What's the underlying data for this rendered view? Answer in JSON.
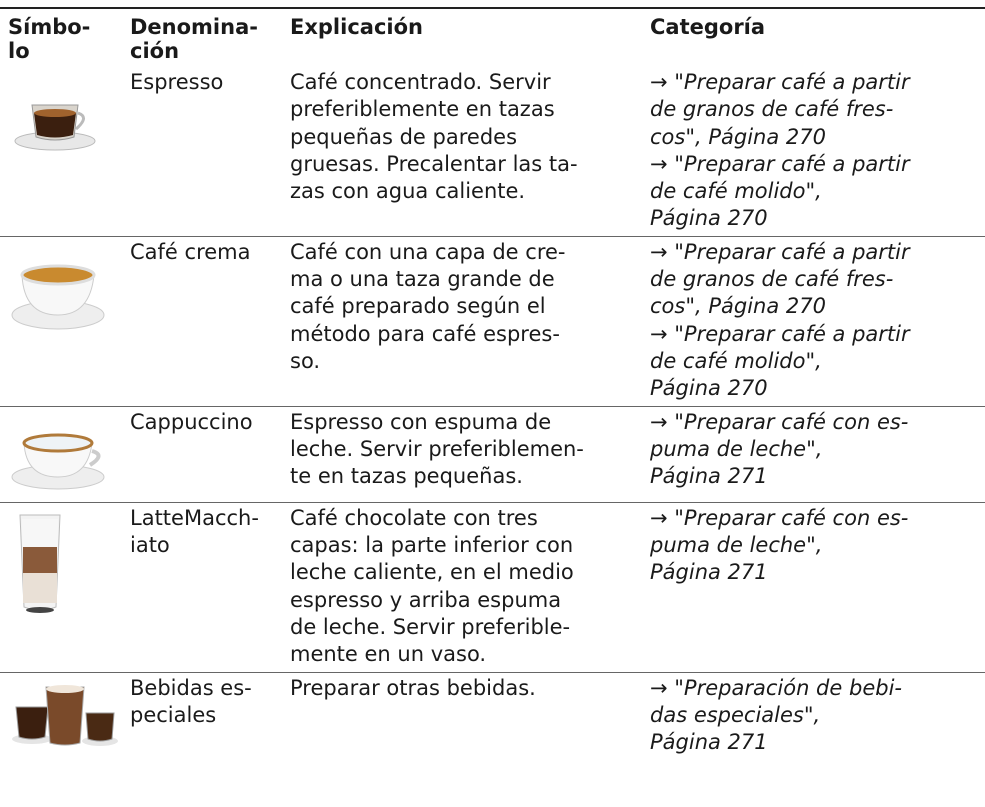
{
  "table": {
    "header": [
      [
        "Símbo-",
        "lo"
      ],
      [
        "Denomina-",
        "ción"
      ],
      [
        "Explicación"
      ],
      [
        "Categoría"
      ]
    ],
    "rows": [
      {
        "name": [
          "Espresso"
        ],
        "explanation": [
          "Café concentrado. Servir",
          "preferiblemente en tazas",
          "pequeñas de paredes",
          "gruesas. Precalentar las ta-",
          "zas con agua caliente."
        ],
        "category": [
          "→ \"Preparar café a partir",
          "de granos de café fres-",
          "cos\", Página 270",
          "→ \"Preparar café a partir",
          "de café molido\",",
          "Página 270"
        ]
      },
      {
        "name": [
          "Café crema"
        ],
        "explanation": [
          "Café con una capa de cre-",
          "ma o una taza grande de",
          "café preparado según el",
          "método para café espres-",
          "so."
        ],
        "category": [
          "→ \"Preparar café a partir",
          "de granos de café fres-",
          "cos\", Página 270",
          "→ \"Preparar café a partir",
          "de café molido\",",
          "Página 270"
        ]
      },
      {
        "name": [
          "Cappuccino"
        ],
        "explanation": [
          "Espresso con espuma de",
          "leche. Servir preferiblemen-",
          "te en tazas pequeñas."
        ],
        "category": [
          "→ \"Preparar café con es-",
          "puma de leche\",",
          "Página 271"
        ]
      },
      {
        "name": [
          "LatteMacch-",
          "iato"
        ],
        "explanation": [
          "Café chocolate con tres",
          "capas: la parte inferior con",
          "leche caliente, en el medio",
          "espresso y arriba espuma",
          "de leche. Servir preferible-",
          "mente en un vaso."
        ],
        "category": [
          "→ \"Preparar café con es-",
          "puma de leche\",",
          "Página 271"
        ]
      },
      {
        "name": [
          "Bebidas es-",
          "peciales"
        ],
        "explanation": [
          "Preparar otras bebidas."
        ],
        "category": [
          "→ \"Preparación de bebi-",
          "das especiales\",",
          "Página 271"
        ]
      }
    ]
  }
}
